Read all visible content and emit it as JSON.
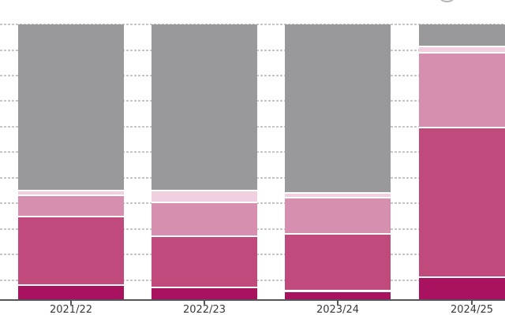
{
  "chart_data": {
    "type": "bar",
    "variant": "stacked-100-percent",
    "title": "",
    "xlabel": "",
    "ylabel": "",
    "legend": "none",
    "categories": [
      "2021/22",
      "2022/23",
      "2023/24",
      "2024/25"
    ],
    "series": [
      {
        "name": "bottom-segment-crimson",
        "color": "#a8125e",
        "values": [
          5.4,
          4.6,
          3.3,
          8.2
        ]
      },
      {
        "name": "second-segment-dark-pink",
        "color": "#c14a7d",
        "values": [
          24.9,
          18.6,
          20.8,
          54.5
        ]
      },
      {
        "name": "third-segment-medium-pink",
        "color": "#d78fb0",
        "values": [
          7.9,
          12.4,
          13.2,
          27.2
        ]
      },
      {
        "name": "fourth-segment-pale-pink",
        "color": "#f0cfe0",
        "values": [
          1.6,
          4.3,
          1.8,
          2.5
        ]
      },
      {
        "name": "top-segment-gray",
        "color": "#99989a",
        "values": [
          60.2,
          60.1,
          60.9,
          7.6
        ]
      }
    ],
    "ylim": [
      0,
      100
    ],
    "gridlines": {
      "visible": true,
      "style": "dashed",
      "count": 11,
      "color": "#c6c6c6"
    },
    "axis_line_color": "#55565a",
    "tick_color": "#55565a",
    "tick_label_color": "#3a3a3a",
    "segment_separator_color": "#ffffff",
    "background": "#ffffff"
  }
}
